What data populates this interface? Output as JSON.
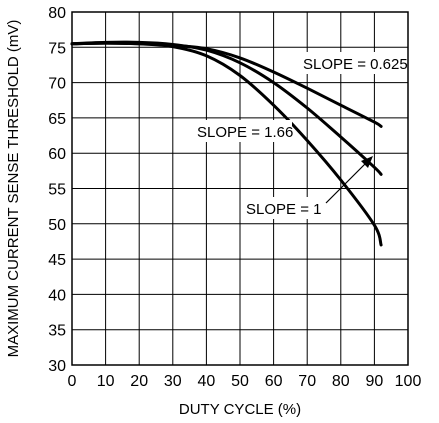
{
  "chart_data": {
    "type": "line",
    "xlabel": "DUTY CYCLE (%)",
    "ylabel": "MAXIMUM CURRENT SENSE THRESHOLD (mV)",
    "xlim": [
      0,
      100
    ],
    "ylim": [
      30,
      80
    ],
    "x_ticks": [
      0,
      10,
      20,
      30,
      40,
      50,
      60,
      70,
      80,
      90,
      100
    ],
    "y_ticks": [
      30,
      35,
      40,
      45,
      50,
      55,
      60,
      65,
      70,
      75,
      80
    ],
    "grid": true,
    "series": [
      {
        "name": "SLOPE = 0.625",
        "x": [
          0,
          10,
          20,
          30,
          40,
          50,
          60,
          70,
          80,
          90,
          92
        ],
        "y": [
          75.5,
          75.6,
          75.5,
          75.3,
          74.8,
          73.5,
          71.5,
          69.2,
          66.8,
          64.4,
          63.8
        ]
      },
      {
        "name": "SLOPE = 1",
        "x": [
          0,
          10,
          20,
          30,
          40,
          50,
          60,
          70,
          80,
          90,
          92
        ],
        "y": [
          75.5,
          75.7,
          75.7,
          75.4,
          74.6,
          72.8,
          70.0,
          66.4,
          62.3,
          58.0,
          57.0
        ]
      },
      {
        "name": "SLOPE = 1.66",
        "x": [
          0,
          10,
          20,
          30,
          40,
          50,
          60,
          70,
          80,
          90,
          92
        ],
        "y": [
          75.5,
          75.6,
          75.5,
          75.1,
          73.8,
          71.0,
          66.8,
          61.8,
          56.2,
          49.8,
          47.0
        ]
      }
    ],
    "annotations": [
      {
        "text": "SLOPE = 0.625",
        "series": 0
      },
      {
        "text": "SLOPE = 1.66",
        "series": 2
      },
      {
        "text": "SLOPE = 1",
        "series": 1
      }
    ]
  }
}
